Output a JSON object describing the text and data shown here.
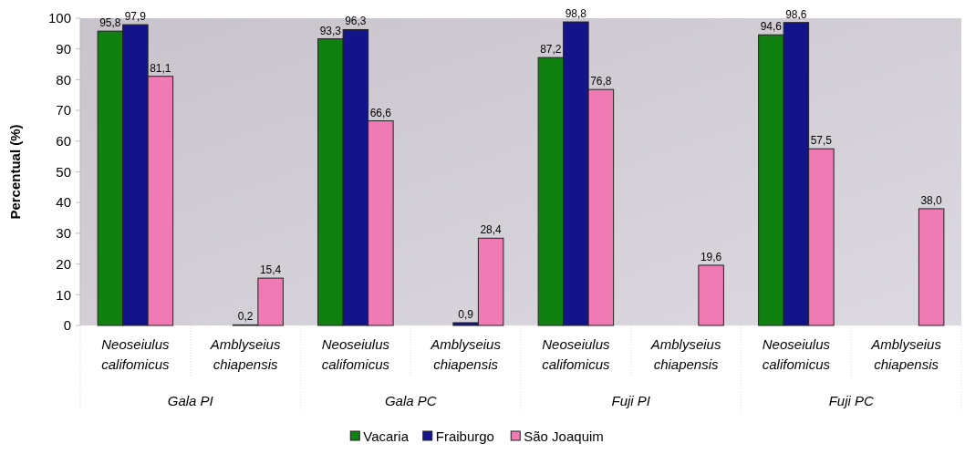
{
  "chart_data": {
    "type": "bar",
    "ylabel": "Percentual (%)",
    "categories": [
      "Neoseiulus califomicus",
      "Amblyseius chiapensis",
      "Neoseiulus califomicus",
      "Amblyseius chiapensis",
      "Neoseiulus califomicus",
      "Amblyseius chiapensis",
      "Neoseiulus califomicus",
      "Amblyseius chiapensis"
    ],
    "series": [
      {
        "name": "Vacaria",
        "color": "#108010",
        "values": [
          95.8,
          null,
          93.3,
          null,
          87.2,
          null,
          94.6,
          null
        ],
        "value_labels": [
          "95,8",
          null,
          "93,3",
          null,
          "87,2",
          null,
          "94,6",
          null
        ]
      },
      {
        "name": "Fraiburgo",
        "color": "#14148a",
        "values": [
          97.9,
          0.2,
          96.3,
          0.9,
          98.8,
          null,
          98.6,
          null
        ],
        "value_labels": [
          "97,9",
          "0,2",
          "96,3",
          "0,9",
          "98,8",
          null,
          "98,6",
          null
        ]
      },
      {
        "name": "São Joaquim",
        "color": "#f07ab4",
        "values": [
          81.1,
          15.4,
          66.6,
          28.4,
          76.8,
          19.6,
          57.5,
          38.0
        ],
        "value_labels": [
          "81,1",
          "15,4",
          "66,6",
          "28,4",
          "76,8",
          "19,6",
          "57,5",
          "38,0"
        ]
      }
    ],
    "annotations": [
      "Gala PI",
      "Gala PC",
      "Fuji PI",
      "Fuji PC"
    ],
    "ylim": [
      0,
      100
    ],
    "yticks": [
      0,
      10,
      20,
      30,
      40,
      50,
      60,
      70,
      80,
      90,
      100
    ],
    "grid": false,
    "legend": "bottom"
  }
}
